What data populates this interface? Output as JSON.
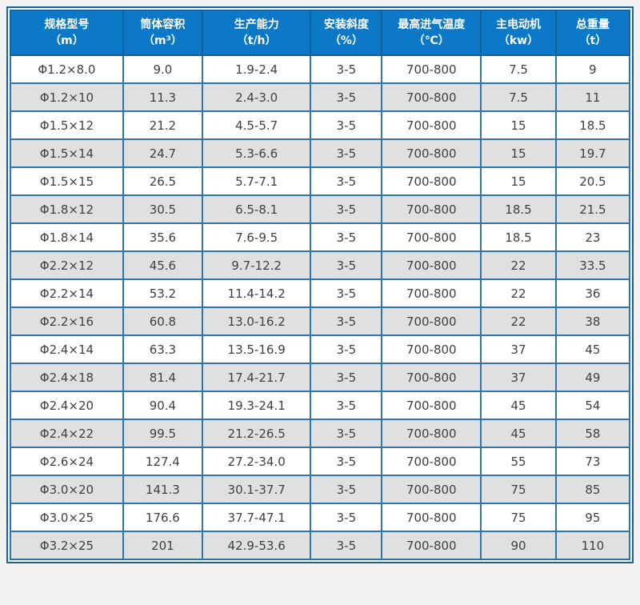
{
  "theme": {
    "page_bg": "#f1f1f1",
    "outer_border": "#17609c",
    "grid_border": "#2b76ae",
    "header_bg": "#0c78c8",
    "header_border": "#175f9e",
    "header_text": "#ffffff",
    "row_odd_bg": "#ffffff",
    "row_even_bg": "#e0e0e0",
    "body_text": "#404040"
  },
  "chart_data": {
    "type": "table",
    "columns": [
      {
        "key": "spec-model",
        "label": "规格型号",
        "unit": "（m）"
      },
      {
        "key": "cylinder-volume",
        "label": "筒体容积",
        "unit": "（m³）"
      },
      {
        "key": "production-capacity",
        "label": "生产能力",
        "unit": "（t/h）"
      },
      {
        "key": "installation-slope",
        "label": "安装斜度",
        "unit": "（%）"
      },
      {
        "key": "max-inlet-temp",
        "label": "最高进气温度",
        "unit": "（℃）"
      },
      {
        "key": "main-motor",
        "label": "主电动机",
        "unit": "（kw）"
      },
      {
        "key": "total-weight",
        "label": "总重量",
        "unit": "（t）"
      }
    ],
    "rows": [
      [
        "Φ1.2×8.0",
        "9.0",
        "1.9-2.4",
        "3-5",
        "700-800",
        "7.5",
        "9"
      ],
      [
        "Φ1.2×10",
        "11.3",
        "2.4-3.0",
        "3-5",
        "700-800",
        "7.5",
        "11"
      ],
      [
        "Φ1.5×12",
        "21.2",
        "4.5-5.7",
        "3-5",
        "700-800",
        "15",
        "18.5"
      ],
      [
        "Φ1.5×14",
        "24.7",
        "5.3-6.6",
        "3-5",
        "700-800",
        "15",
        "19.7"
      ],
      [
        "Φ1.5×15",
        "26.5",
        "5.7-7.1",
        "3-5",
        "700-800",
        "15",
        "20.5"
      ],
      [
        "Φ1.8×12",
        "30.5",
        "6.5-8.1",
        "3-5",
        "700-800",
        "18.5",
        "21.5"
      ],
      [
        "Φ1.8×14",
        "35.6",
        "7.6-9.5",
        "3-5",
        "700-800",
        "18.5",
        "23"
      ],
      [
        "Φ2.2×12",
        "45.6",
        "9.7-12.2",
        "3-5",
        "700-800",
        "22",
        "33.5"
      ],
      [
        "Φ2.2×14",
        "53.2",
        "11.4-14.2",
        "3-5",
        "700-800",
        "22",
        "36"
      ],
      [
        "Φ2.2×16",
        "60.8",
        "13.0-16.2",
        "3-5",
        "700-800",
        "22",
        "38"
      ],
      [
        "Φ2.4×14",
        "63.3",
        "13.5-16.9",
        "3-5",
        "700-800",
        "37",
        "45"
      ],
      [
        "Φ2.4×18",
        "81.4",
        "17.4-21.7",
        "3-5",
        "700-800",
        "37",
        "49"
      ],
      [
        "Φ2.4×20",
        "90.4",
        "19.3-24.1",
        "3-5",
        "700-800",
        "45",
        "54"
      ],
      [
        "Φ2.4×22",
        "99.5",
        "21.2-26.5",
        "3-5",
        "700-800",
        "45",
        "58"
      ],
      [
        "Φ2.6×24",
        "127.4",
        "27.2-34.0",
        "3-5",
        "700-800",
        "55",
        "73"
      ],
      [
        "Φ3.0×20",
        "141.3",
        "30.1-37.7",
        "3-5",
        "700-800",
        "75",
        "85"
      ],
      [
        "Φ3.0×25",
        "176.6",
        "37.7-47.1",
        "3-5",
        "700-800",
        "75",
        "95"
      ],
      [
        "Φ3.2×25",
        "201",
        "42.9-53.6",
        "3-5",
        "700-800",
        "90",
        "110"
      ]
    ]
  }
}
